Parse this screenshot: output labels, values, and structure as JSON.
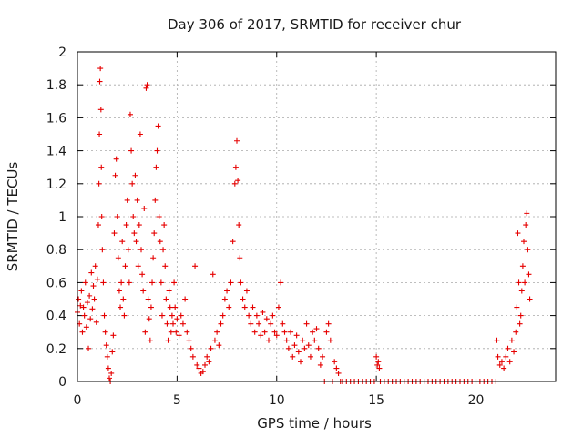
{
  "chart_data": {
    "type": "scatter",
    "title": "Day 306 of 2017, SRMTID for receiver chur",
    "xlabel": "GPS time / hours",
    "ylabel": "SRMTID / TECUs",
    "xlim": [
      0,
      24
    ],
    "ylim": [
      0,
      2
    ],
    "xticks": [
      0,
      5,
      10,
      15,
      20
    ],
    "yticks": [
      0,
      0.2,
      0.4,
      0.6,
      0.8,
      1,
      1.2,
      1.4,
      1.6,
      1.8,
      2
    ],
    "xtick_labels": [
      "0",
      "5",
      "10",
      "15",
      "20"
    ],
    "ytick_labels": [
      "0",
      "0.2",
      "0.4",
      "0.6",
      "0.8",
      "1",
      "1.2",
      "1.4",
      "1.6",
      "1.8",
      "2"
    ],
    "grid": true,
    "marker": "+",
    "color": "#e60000",
    "series": [
      {
        "name": "SRMTID",
        "points": [
          [
            0.0,
            0.42
          ],
          [
            0.05,
            0.5
          ],
          [
            0.1,
            0.35
          ],
          [
            0.15,
            0.46
          ],
          [
            0.2,
            0.55
          ],
          [
            0.25,
            0.3
          ],
          [
            0.3,
            0.45
          ],
          [
            0.35,
            0.4
          ],
          [
            0.4,
            0.6
          ],
          [
            0.45,
            0.33
          ],
          [
            0.5,
            0.48
          ],
          [
            0.55,
            0.2
          ],
          [
            0.6,
            0.52
          ],
          [
            0.65,
            0.38
          ],
          [
            0.7,
            0.66
          ],
          [
            0.75,
            0.44
          ],
          [
            0.8,
            0.58
          ],
          [
            0.85,
            0.5
          ],
          [
            0.9,
            0.7
          ],
          [
            0.95,
            0.36
          ],
          [
            1.0,
            0.62
          ],
          [
            1.05,
            0.95
          ],
          [
            1.08,
            1.2
          ],
          [
            1.1,
            1.5
          ],
          [
            1.12,
            1.82
          ],
          [
            1.15,
            1.9
          ],
          [
            1.18,
            1.65
          ],
          [
            1.2,
            1.3
          ],
          [
            1.22,
            1.0
          ],
          [
            1.25,
            0.8
          ],
          [
            1.3,
            0.6
          ],
          [
            1.35,
            0.4
          ],
          [
            1.4,
            0.3
          ],
          [
            1.45,
            0.22
          ],
          [
            1.5,
            0.15
          ],
          [
            1.55,
            0.08
          ],
          [
            1.6,
            0.02
          ],
          [
            1.65,
            0.0
          ],
          [
            1.7,
            0.05
          ],
          [
            1.75,
            0.18
          ],
          [
            1.8,
            0.28
          ],
          [
            1.85,
            0.9
          ],
          [
            1.9,
            1.25
          ],
          [
            1.95,
            1.35
          ],
          [
            2.0,
            1.0
          ],
          [
            2.05,
            0.75
          ],
          [
            2.1,
            0.55
          ],
          [
            2.15,
            0.45
          ],
          [
            2.2,
            0.6
          ],
          [
            2.25,
            0.85
          ],
          [
            2.3,
            0.5
          ],
          [
            2.35,
            0.4
          ],
          [
            2.4,
            0.7
          ],
          [
            2.45,
            0.95
          ],
          [
            2.5,
            1.1
          ],
          [
            2.55,
            0.8
          ],
          [
            2.6,
            0.6
          ],
          [
            2.65,
            1.62
          ],
          [
            2.7,
            1.4
          ],
          [
            2.75,
            1.2
          ],
          [
            2.8,
            1.0
          ],
          [
            2.85,
            0.9
          ],
          [
            2.9,
            1.25
          ],
          [
            2.95,
            0.85
          ],
          [
            3.0,
            1.1
          ],
          [
            3.05,
            0.7
          ],
          [
            3.1,
            0.95
          ],
          [
            3.15,
            1.5
          ],
          [
            3.2,
            0.8
          ],
          [
            3.25,
            0.65
          ],
          [
            3.3,
            0.55
          ],
          [
            3.35,
            1.05
          ],
          [
            3.4,
            0.3
          ],
          [
            3.45,
            1.78
          ],
          [
            3.5,
            1.8
          ],
          [
            3.55,
            0.5
          ],
          [
            3.6,
            0.38
          ],
          [
            3.65,
            0.25
          ],
          [
            3.7,
            0.45
          ],
          [
            3.75,
            0.6
          ],
          [
            3.8,
            0.75
          ],
          [
            3.85,
            0.9
          ],
          [
            3.9,
            1.1
          ],
          [
            3.95,
            1.3
          ],
          [
            4.0,
            1.4
          ],
          [
            4.05,
            1.55
          ],
          [
            4.1,
            1.0
          ],
          [
            4.15,
            0.85
          ],
          [
            4.2,
            0.6
          ],
          [
            4.25,
            0.4
          ],
          [
            4.3,
            0.8
          ],
          [
            4.35,
            0.95
          ],
          [
            4.4,
            0.7
          ],
          [
            4.45,
            0.5
          ],
          [
            4.5,
            0.35
          ],
          [
            4.55,
            0.25
          ],
          [
            4.6,
            0.55
          ],
          [
            4.65,
            0.45
          ],
          [
            4.7,
            0.3
          ],
          [
            4.75,
            0.4
          ],
          [
            4.8,
            0.35
          ],
          [
            4.85,
            0.6
          ],
          [
            4.9,
            0.45
          ],
          [
            4.95,
            0.3
          ],
          [
            5.0,
            0.38
          ],
          [
            5.1,
            0.28
          ],
          [
            5.2,
            0.4
          ],
          [
            5.3,
            0.35
          ],
          [
            5.4,
            0.5
          ],
          [
            5.5,
            0.3
          ],
          [
            5.6,
            0.25
          ],
          [
            5.7,
            0.2
          ],
          [
            5.8,
            0.15
          ],
          [
            5.9,
            0.7
          ],
          [
            6.0,
            0.1
          ],
          [
            6.1,
            0.08
          ],
          [
            6.2,
            0.05
          ],
          [
            6.3,
            0.06
          ],
          [
            6.4,
            0.1
          ],
          [
            6.5,
            0.15
          ],
          [
            6.6,
            0.12
          ],
          [
            6.7,
            0.2
          ],
          [
            6.8,
            0.65
          ],
          [
            6.9,
            0.25
          ],
          [
            7.0,
            0.3
          ],
          [
            7.1,
            0.22
          ],
          [
            7.2,
            0.35
          ],
          [
            7.3,
            0.4
          ],
          [
            7.4,
            0.5
          ],
          [
            7.5,
            0.55
          ],
          [
            7.6,
            0.45
          ],
          [
            7.7,
            0.6
          ],
          [
            7.8,
            0.85
          ],
          [
            7.9,
            1.2
          ],
          [
            7.95,
            1.3
          ],
          [
            8.0,
            1.46
          ],
          [
            8.05,
            1.22
          ],
          [
            8.1,
            0.95
          ],
          [
            8.15,
            0.75
          ],
          [
            8.2,
            0.6
          ],
          [
            8.3,
            0.5
          ],
          [
            8.4,
            0.45
          ],
          [
            8.5,
            0.55
          ],
          [
            8.6,
            0.4
          ],
          [
            8.7,
            0.35
          ],
          [
            8.8,
            0.45
          ],
          [
            8.9,
            0.3
          ],
          [
            9.0,
            0.4
          ],
          [
            9.1,
            0.35
          ],
          [
            9.2,
            0.28
          ],
          [
            9.3,
            0.42
          ],
          [
            9.4,
            0.3
          ],
          [
            9.5,
            0.38
          ],
          [
            9.6,
            0.25
          ],
          [
            9.7,
            0.35
          ],
          [
            9.8,
            0.4
          ],
          [
            9.9,
            0.3
          ],
          [
            10.0,
            0.28
          ],
          [
            10.1,
            0.45
          ],
          [
            10.2,
            0.6
          ],
          [
            10.3,
            0.35
          ],
          [
            10.4,
            0.3
          ],
          [
            10.5,
            0.25
          ],
          [
            10.6,
            0.2
          ],
          [
            10.7,
            0.3
          ],
          [
            10.8,
            0.15
          ],
          [
            10.9,
            0.22
          ],
          [
            11.0,
            0.28
          ],
          [
            11.1,
            0.18
          ],
          [
            11.2,
            0.12
          ],
          [
            11.3,
            0.25
          ],
          [
            11.4,
            0.2
          ],
          [
            11.5,
            0.35
          ],
          [
            11.6,
            0.22
          ],
          [
            11.7,
            0.15
          ],
          [
            11.8,
            0.3
          ],
          [
            11.9,
            0.25
          ],
          [
            12.0,
            0.32
          ],
          [
            12.1,
            0.2
          ],
          [
            12.2,
            0.1
          ],
          [
            12.3,
            0.15
          ],
          [
            12.4,
            0.0
          ],
          [
            12.5,
            0.3
          ],
          [
            12.6,
            0.35
          ],
          [
            12.7,
            0.25
          ],
          [
            12.8,
            0.0
          ],
          [
            12.9,
            0.12
          ],
          [
            13.0,
            0.08
          ],
          [
            13.1,
            0.05
          ],
          [
            13.2,
            0.0
          ],
          [
            13.3,
            0.0
          ],
          [
            13.5,
            0.0
          ],
          [
            13.7,
            0.0
          ],
          [
            13.9,
            0.0
          ],
          [
            14.1,
            0.0
          ],
          [
            14.3,
            0.0
          ],
          [
            14.5,
            0.0
          ],
          [
            14.7,
            0.0
          ],
          [
            14.9,
            0.0
          ],
          [
            15.0,
            0.15
          ],
          [
            15.05,
            0.1
          ],
          [
            15.1,
            0.12
          ],
          [
            15.15,
            0.08
          ],
          [
            15.2,
            0.0
          ],
          [
            15.4,
            0.0
          ],
          [
            15.6,
            0.0
          ],
          [
            15.8,
            0.0
          ],
          [
            16.0,
            0.0
          ],
          [
            16.2,
            0.0
          ],
          [
            16.4,
            0.0
          ],
          [
            16.6,
            0.0
          ],
          [
            16.8,
            0.0
          ],
          [
            17.0,
            0.0
          ],
          [
            17.2,
            0.0
          ],
          [
            17.4,
            0.0
          ],
          [
            17.6,
            0.0
          ],
          [
            17.8,
            0.0
          ],
          [
            18.0,
            0.0
          ],
          [
            18.2,
            0.0
          ],
          [
            18.4,
            0.0
          ],
          [
            18.6,
            0.0
          ],
          [
            18.8,
            0.0
          ],
          [
            19.0,
            0.0
          ],
          [
            19.2,
            0.0
          ],
          [
            19.4,
            0.0
          ],
          [
            19.6,
            0.0
          ],
          [
            19.8,
            0.0
          ],
          [
            20.0,
            0.0
          ],
          [
            20.2,
            0.0
          ],
          [
            20.4,
            0.0
          ],
          [
            20.6,
            0.0
          ],
          [
            20.8,
            0.0
          ],
          [
            21.0,
            0.0
          ],
          [
            21.05,
            0.25
          ],
          [
            21.1,
            0.15
          ],
          [
            21.2,
            0.1
          ],
          [
            21.3,
            0.12
          ],
          [
            21.4,
            0.08
          ],
          [
            21.5,
            0.15
          ],
          [
            21.6,
            0.2
          ],
          [
            21.7,
            0.12
          ],
          [
            21.8,
            0.25
          ],
          [
            21.9,
            0.18
          ],
          [
            22.0,
            0.3
          ],
          [
            22.05,
            0.45
          ],
          [
            22.1,
            0.9
          ],
          [
            22.15,
            0.6
          ],
          [
            22.2,
            0.35
          ],
          [
            22.25,
            0.4
          ],
          [
            22.3,
            0.55
          ],
          [
            22.35,
            0.7
          ],
          [
            22.4,
            0.85
          ],
          [
            22.45,
            0.6
          ],
          [
            22.5,
            0.95
          ],
          [
            22.55,
            1.02
          ],
          [
            22.6,
            0.8
          ],
          [
            22.65,
            0.65
          ],
          [
            22.7,
            0.5
          ]
        ]
      }
    ]
  }
}
